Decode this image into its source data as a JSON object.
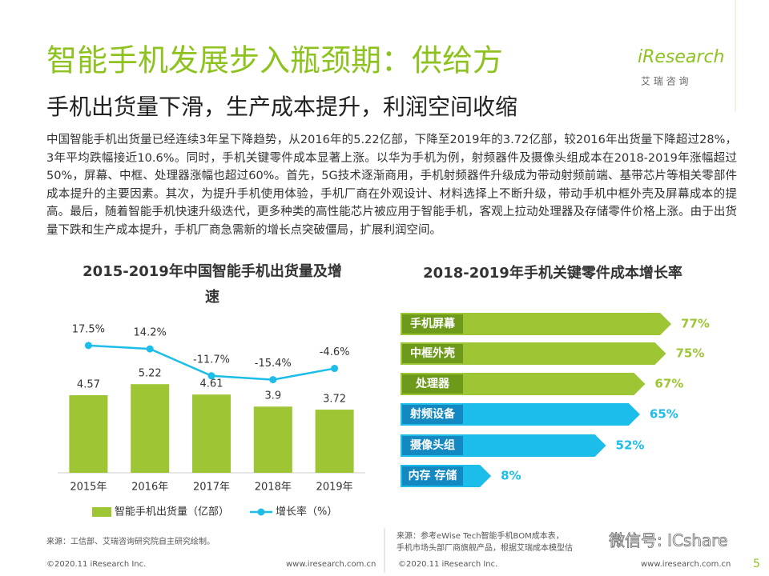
{
  "header": {
    "title": "智能手机发展步入瓶颈期：供给方",
    "subtitle": "手机出货量下滑，生产成本提升，利润空间收缩",
    "logo": "iResearch",
    "logo_cn": "艾 瑞 咨 询"
  },
  "body": "中国智能手机出货量已经连续3年呈下降趋势，从2016年的5.22亿部，下降至2019年的3.72亿部，较2016年出货量下降超过28%，3年平均跌幅接近10.6%。同时，手机关键零件成本显著上涨。以华为手机为例，射频器件及摄像头组成本在2018-2019年涨幅超过50%，屏幕、中框、处理器涨幅也超过60%。首先，5G技术逐渐商用，手机射频器件升级成为带动射频前端、基带芯片等相关零部件成本提升的主要因素。其次，为提升手机使用体验，手机厂商在外观设计、材料选择上不断升级，带动手机中框外壳及屏幕成本的提高。最后，随着智能手机快速升级迭代，更多种类的高性能芯片被应用于智能手机，客观上拉动处理器及存储零件价格上涨。由于出货量下跌和生产成本提升，手机厂商急需新的增长点突破僵局，扩展利润空间。",
  "chart_data": [
    {
      "type": "combo",
      "title": "2015-2019年中国智能手机出货量及增速",
      "categories": [
        "2015年",
        "2016年",
        "2017年",
        "2018年",
        "2019年"
      ],
      "series": [
        {
          "name": "智能手机出货量（亿部）",
          "color": "#9dc534",
          "values": [
            4.57,
            5.22,
            4.61,
            3.9,
            3.72
          ]
        },
        {
          "name": "增长率（%）",
          "color": "#1cbde8",
          "axis": "y2",
          "values": [
            17.5,
            14.2,
            -11.7,
            -15.4,
            -4.6
          ],
          "value_labels": [
            "17.5%",
            "14.2%",
            "-11.7%",
            "-15.4%",
            "-4.6%"
          ]
        }
      ],
      "ylim": [
        0,
        9
      ],
      "y2lim": [
        -105,
        42
      ],
      "source": "来源：工信部、艾瑞咨询研究院自主研究绘制。"
    },
    {
      "type": "hbar",
      "title": "2018-2019年手机关键零件成本增长率",
      "categories": [
        "手机屏幕",
        "中框外壳",
        "处理器",
        "射频设备",
        "摄像头组",
        "内存 存储"
      ],
      "values": [
        77,
        75,
        67,
        65,
        52,
        8
      ],
      "value_labels": [
        "77%",
        "75%",
        "67%",
        "65%",
        "52%",
        "8%"
      ],
      "colors": [
        "#9dc534",
        "#9dc534",
        "#9dc534",
        "#1cbde8",
        "#1cbde8",
        "#1cbde8"
      ],
      "label_colors": [
        "#6e9a1c",
        "#6e9a1c",
        "#6e9a1c",
        "#1488c0",
        "#1488c0",
        "#1488c0"
      ],
      "xlim": [
        0,
        100
      ],
      "source": [
        "来源：参考eWise Tech智能手机BOM成本表，",
        "手机市场头部厂商旗舰产品，根据艾瑞成本模型估"
      ]
    }
  ],
  "footer": {
    "copyright_left": "©2020.11 iResearch Inc.",
    "url_left": "www.iresearch.com.cn",
    "copyright_right": "©2020.11 iResearch Inc.",
    "url_right": "www.iresearch.com.cn",
    "page": "5",
    "watermark": "微信号: ICshare"
  }
}
